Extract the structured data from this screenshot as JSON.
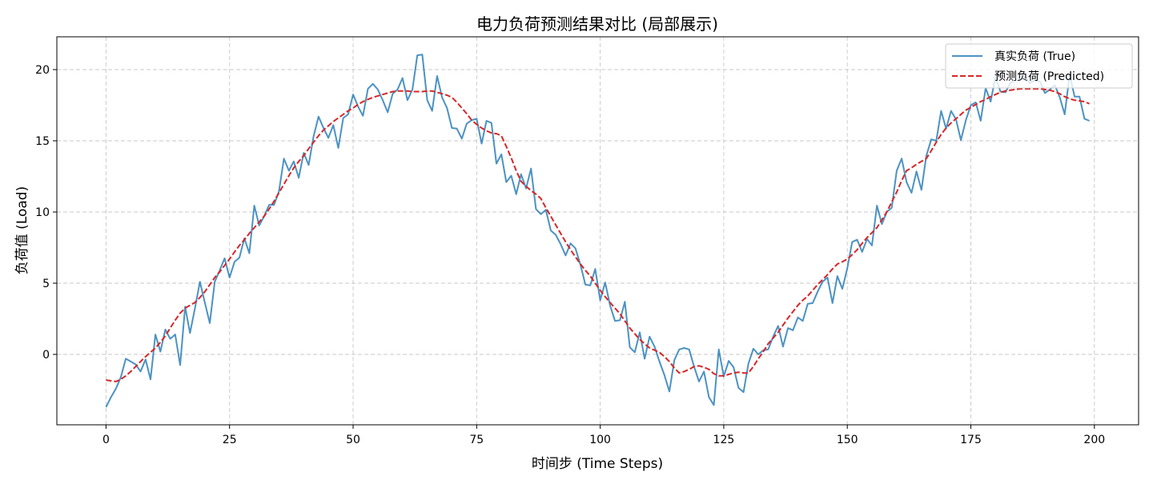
{
  "chart_data": {
    "type": "line",
    "title": "电力负荷预测结果对比 (局部展示)",
    "xlabel": "时间步 (Time Steps)",
    "ylabel": "负荷值 (Load)",
    "xlim": [
      -9.95,
      208.95
    ],
    "ylim": [
      -4.94,
      22.3
    ],
    "x_ticks": [
      0,
      25,
      50,
      75,
      100,
      125,
      150,
      175,
      200
    ],
    "y_ticks": [
      0,
      5,
      10,
      15,
      20
    ],
    "grid": true,
    "legend": "upper right",
    "x": [
      0,
      1,
      2,
      3,
      4,
      5,
      6,
      7,
      8,
      9,
      10,
      11,
      12,
      13,
      14,
      15,
      16,
      17,
      18,
      19,
      20,
      21,
      22,
      23,
      24,
      25,
      26,
      27,
      28,
      29,
      30,
      31,
      32,
      33,
      34,
      35,
      36,
      37,
      38,
      39,
      40,
      41,
      42,
      43,
      44,
      45,
      46,
      47,
      48,
      49,
      50,
      51,
      52,
      53,
      54,
      55,
      56,
      57,
      58,
      59,
      60,
      61,
      62,
      63,
      64,
      65,
      66,
      67,
      68,
      69,
      70,
      71,
      72,
      73,
      74,
      75,
      76,
      77,
      78,
      79,
      80,
      81,
      82,
      83,
      84,
      85,
      86,
      87,
      88,
      89,
      90,
      91,
      92,
      93,
      94,
      95,
      96,
      97,
      98,
      99,
      100,
      101,
      102,
      103,
      104,
      105,
      106,
      107,
      108,
      109,
      110,
      111,
      112,
      113,
      114,
      115,
      116,
      117,
      118,
      119,
      120,
      121,
      122,
      123,
      124,
      125,
      126,
      127,
      128,
      129,
      130,
      131,
      132,
      133,
      134,
      135,
      136,
      137,
      138,
      139,
      140,
      141,
      142,
      143,
      144,
      145,
      146,
      147,
      148,
      149,
      150,
      151,
      152,
      153,
      154,
      155,
      156,
      157,
      158,
      159,
      160,
      161,
      162,
      163,
      164,
      165,
      166,
      167,
      168,
      169,
      170,
      171,
      172,
      173,
      174,
      175,
      176,
      177,
      178,
      179,
      180,
      181,
      182,
      183,
      184,
      185,
      186,
      187,
      188,
      189,
      190,
      191,
      192,
      193,
      194,
      195,
      196,
      197,
      198,
      199
    ],
    "series": [
      {
        "name": "真实负荷 (True)",
        "color": "#1f77b4",
        "linestyle": "solid",
        "values": [
          -3.7,
          -3.0,
          -2.4,
          -1.6,
          -0.3,
          -0.5,
          -0.7,
          -1.2,
          -0.35,
          -1.75,
          1.4,
          0.2,
          1.75,
          1.1,
          1.4,
          -0.75,
          3.35,
          1.5,
          3.25,
          5.1,
          3.65,
          2.2,
          5.1,
          5.9,
          6.75,
          5.4,
          6.5,
          6.8,
          8.15,
          7.1,
          10.45,
          9.05,
          9.7,
          10.5,
          10.5,
          11.45,
          13.75,
          12.9,
          13.55,
          12.4,
          14.15,
          13.3,
          15.3,
          16.7,
          15.9,
          15.2,
          16.1,
          14.5,
          16.6,
          16.85,
          18.25,
          17.4,
          16.75,
          18.65,
          19.0,
          18.6,
          17.85,
          17.0,
          18.3,
          18.6,
          19.4,
          17.85,
          18.6,
          21.0,
          21.05,
          17.85,
          17.1,
          19.55,
          18.05,
          17.3,
          15.9,
          15.85,
          15.15,
          16.2,
          16.45,
          16.55,
          14.8,
          16.4,
          16.25,
          13.4,
          14.05,
          12.1,
          12.55,
          11.25,
          12.65,
          11.65,
          13.05,
          10.2,
          9.85,
          10.15,
          8.7,
          8.4,
          7.75,
          6.95,
          7.8,
          7.45,
          6.3,
          4.9,
          4.85,
          6.0,
          3.8,
          5.05,
          3.45,
          2.35,
          2.4,
          3.7,
          0.5,
          0.15,
          1.55,
          -0.3,
          1.25,
          0.55,
          -0.5,
          -1.45,
          -2.6,
          -0.4,
          0.35,
          0.45,
          0.35,
          -0.85,
          -1.9,
          -1.2,
          -3.0,
          -3.55,
          0.35,
          -1.55,
          -0.45,
          -0.9,
          -2.35,
          -2.65,
          -0.65,
          0.4,
          0.0,
          0.3,
          0.35,
          1.25,
          2.0,
          0.55,
          1.85,
          1.7,
          2.6,
          2.35,
          3.55,
          3.6,
          4.4,
          5.1,
          5.4,
          3.6,
          5.5,
          4.6,
          6.05,
          7.9,
          8.05,
          7.2,
          8.1,
          7.65,
          10.45,
          9.15,
          10.0,
          10.3,
          12.9,
          13.75,
          12.1,
          11.35,
          12.85,
          11.55,
          13.95,
          15.1,
          15.0,
          17.1,
          15.85,
          17.1,
          16.5,
          15.05,
          16.45,
          17.5,
          17.7,
          16.4,
          18.7,
          17.75,
          19.5,
          18.45,
          18.4,
          19.05,
          19.25,
          19.25,
          19.5,
          19.05,
          19.25,
          19.15,
          18.35,
          18.6,
          18.9,
          18.05,
          16.85,
          19.65,
          18.1,
          18.1,
          16.55,
          16.4
        ]
      },
      {
        "name": "预测负荷 (Predicted)",
        "color": "#d62728",
        "linestyle": "dashed",
        "values": [
          -1.8,
          -1.85,
          -1.9,
          -1.75,
          -1.5,
          -1.2,
          -0.85,
          -0.5,
          -0.15,
          0.15,
          0.45,
          0.85,
          1.3,
          1.85,
          2.4,
          2.9,
          3.25,
          3.45,
          3.65,
          4.0,
          4.4,
          4.9,
          5.4,
          5.8,
          6.25,
          6.7,
          7.2,
          7.65,
          8.05,
          8.5,
          8.9,
          9.3,
          9.7,
          10.2,
          10.75,
          11.35,
          11.95,
          12.55,
          13.1,
          13.55,
          13.95,
          14.45,
          14.9,
          15.35,
          15.75,
          16.05,
          16.35,
          16.6,
          16.85,
          17.1,
          17.3,
          17.55,
          17.75,
          17.9,
          18.05,
          18.15,
          18.25,
          18.35,
          18.45,
          18.5,
          18.5,
          18.5,
          18.45,
          18.45,
          18.45,
          18.5,
          18.5,
          18.4,
          18.3,
          18.2,
          18.05,
          17.7,
          17.3,
          16.9,
          16.45,
          16.15,
          15.9,
          15.7,
          15.55,
          15.5,
          15.35,
          14.6,
          13.8,
          12.9,
          12.15,
          11.8,
          11.5,
          11.25,
          10.95,
          10.3,
          9.7,
          9.1,
          8.5,
          7.9,
          7.35,
          6.85,
          6.35,
          5.9,
          5.5,
          5.0,
          4.5,
          4.05,
          3.65,
          3.25,
          2.85,
          2.35,
          1.85,
          1.45,
          1.05,
          0.75,
          0.45,
          0.3,
          0.15,
          -0.15,
          -0.5,
          -0.95,
          -1.3,
          -1.2,
          -1.05,
          -0.85,
          -0.8,
          -0.9,
          -1.05,
          -1.35,
          -1.5,
          -1.5,
          -1.4,
          -1.3,
          -1.25,
          -1.3,
          -1.3,
          -0.85,
          -0.3,
          0.2,
          0.75,
          1.15,
          1.55,
          2.05,
          2.55,
          3.0,
          3.45,
          3.8,
          4.1,
          4.5,
          4.9,
          5.25,
          5.6,
          6.0,
          6.35,
          6.5,
          6.7,
          7.0,
          7.35,
          7.8,
          8.2,
          8.55,
          8.9,
          9.45,
          10.0,
          10.7,
          11.4,
          12.2,
          12.9,
          13.1,
          13.35,
          13.55,
          13.75,
          14.3,
          14.9,
          15.45,
          15.9,
          16.25,
          16.55,
          16.85,
          17.15,
          17.35,
          17.55,
          17.75,
          17.9,
          18.1,
          18.25,
          18.4,
          18.5,
          18.55,
          18.6,
          18.65,
          18.65,
          18.65,
          18.65,
          18.65,
          18.6,
          18.55,
          18.45,
          18.3,
          18.1,
          17.95,
          17.85,
          17.8,
          17.75,
          17.6
        ]
      }
    ]
  }
}
